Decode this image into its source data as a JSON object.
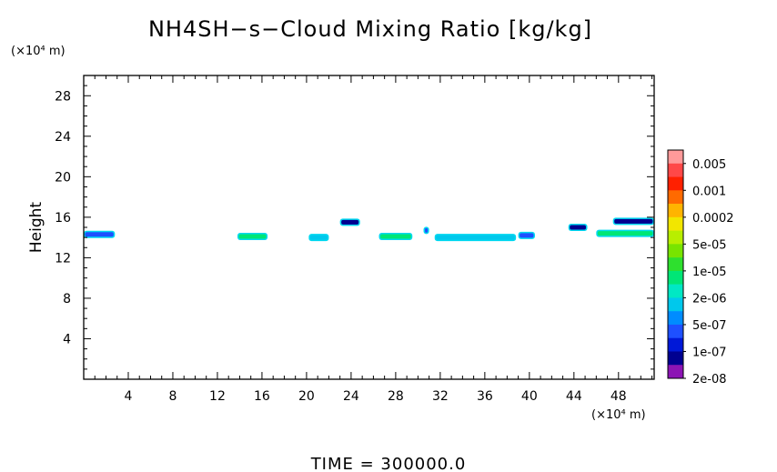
{
  "chart_data": {
    "type": "heatmap",
    "title": "NH4SH−s−Cloud Mixing Ratio [kg/kg]",
    "ylabel": "Height",
    "y_unit": "(×10⁴ m)",
    "x_unit": "(×10⁴ m)",
    "xlim": [
      0,
      51.2
    ],
    "ylim": [
      0,
      30
    ],
    "x_ticks": [
      "4",
      "8",
      "12",
      "16",
      "20",
      "24",
      "28",
      "32",
      "36",
      "40",
      "44",
      "48"
    ],
    "y_ticks": [
      "4",
      "8",
      "12",
      "16",
      "20",
      "24",
      "28"
    ],
    "colorbar": {
      "labels": [
        "0.005",
        "0.001",
        "0.0002",
        "5e-05",
        "1e-05",
        "2e-06",
        "5e-07",
        "1e-07",
        "2e-08"
      ],
      "colors": [
        "#ff9a9a",
        "#ff4848",
        "#ff2000",
        "#ff6a00",
        "#ffb400",
        "#f2e600",
        "#b8ee00",
        "#78e400",
        "#2ee02e",
        "#00e676",
        "#00e8c4",
        "#00c8ec",
        "#008cff",
        "#1e50ff",
        "#0018d8",
        "#000090",
        "#8c14b4"
      ]
    },
    "cloud_patches": [
      {
        "x0": 0.0,
        "x1": 2.8,
        "y": 14.3,
        "level": "5e-07"
      },
      {
        "x0": 13.8,
        "x1": 16.5,
        "y": 14.1,
        "level": "1e-05"
      },
      {
        "x0": 20.2,
        "x1": 22.0,
        "y": 14.0,
        "level": "2e-06"
      },
      {
        "x0": 23.0,
        "x1": 24.8,
        "y": 15.5,
        "level": "1e-07"
      },
      {
        "x0": 26.5,
        "x1": 29.5,
        "y": 14.1,
        "level": "1e-05"
      },
      {
        "x0": 30.5,
        "x1": 31.0,
        "y": 14.7,
        "level": "5e-07"
      },
      {
        "x0": 31.5,
        "x1": 38.8,
        "y": 14.0,
        "level": "2e-06"
      },
      {
        "x0": 39.0,
        "x1": 40.5,
        "y": 14.2,
        "level": "5e-07"
      },
      {
        "x0": 43.5,
        "x1": 45.2,
        "y": 15.0,
        "level": "1e-07"
      },
      {
        "x0": 46.0,
        "x1": 51.2,
        "y": 14.4,
        "level": "1e-05"
      },
      {
        "x0": 47.5,
        "x1": 51.2,
        "y": 15.6,
        "level": "1e-07"
      }
    ]
  },
  "time_label": "TIME  =  300000.0"
}
